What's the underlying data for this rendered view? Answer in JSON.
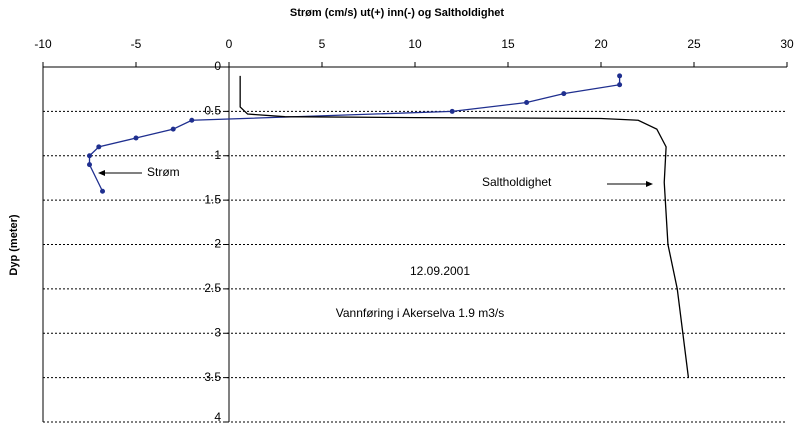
{
  "chart_data": {
    "type": "line",
    "title": "Strøm (cm/s) ut(+) inn(-) og Saltholdighet",
    "y_label": "Dyp (meter)",
    "xlim": [
      -10,
      30
    ],
    "xticks": [
      -10,
      -5,
      0,
      5,
      10,
      15,
      20,
      25,
      30
    ],
    "ylim": [
      0,
      4
    ],
    "yticks": [
      0,
      0.5,
      1,
      1.5,
      2,
      2.5,
      3,
      3.5,
      4
    ],
    "y_inverted": true,
    "grid": true,
    "series": [
      {
        "name": "Strøm",
        "color": "#1f2f8f",
        "markers": true,
        "x": [
          21,
          21,
          18,
          16,
          12,
          -2,
          -3,
          -5,
          -7,
          -7.5,
          -7.5,
          -6.8
        ],
        "values": [
          0.1,
          0.2,
          0.3,
          0.4,
          0.5,
          0.6,
          0.7,
          0.8,
          0.9,
          1.0,
          1.1,
          1.4
        ]
      },
      {
        "name": "Saltholdighet",
        "color": "#000000",
        "markers": false,
        "x": [
          0.6,
          0.6,
          1,
          3,
          10,
          20,
          22,
          23,
          23.5,
          23.4,
          23.6,
          24.1,
          24.4,
          24.7
        ],
        "values": [
          0.1,
          0.45,
          0.53,
          0.56,
          0.57,
          0.58,
          0.6,
          0.7,
          0.9,
          1.3,
          2,
          2.5,
          3,
          3.5
        ]
      }
    ],
    "annotations": [
      "12.09.2001",
      "Vannføring i Akerselva 1.9 m3/s"
    ]
  }
}
